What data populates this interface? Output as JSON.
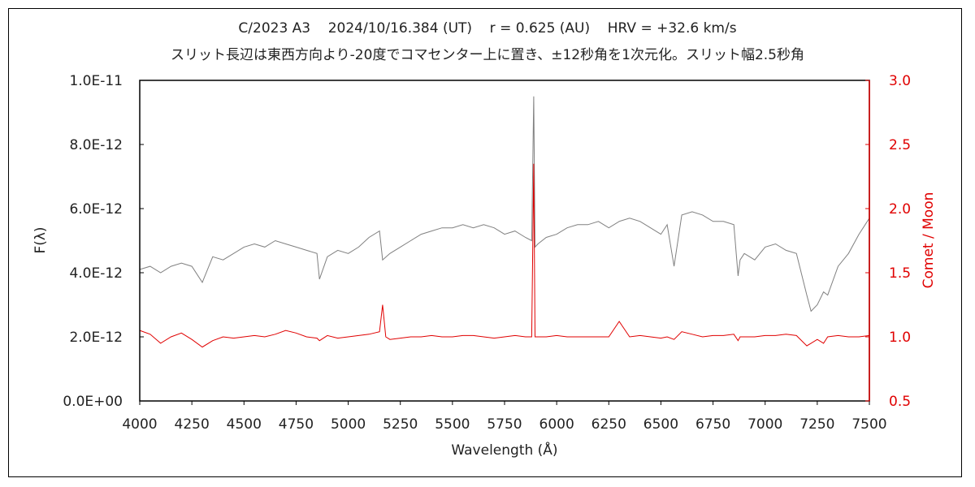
{
  "chart_data": {
    "type": "line",
    "title": "C/2023 A3    2024/10/16.384 (UT)    r = 0.625 (AU)    HRV = +32.6 km/s",
    "subtitle": "スリット長辺は東西方向より-20度でコマセンター上に置き、±12秒角を1次元化。スリット幅2.5秒角",
    "xlabel": "Wavelength (Å)",
    "ylabel": "F(λ)",
    "y2label": "Comet / Moon",
    "xlim": [
      4000,
      7500
    ],
    "ylim": [
      0,
      1e-11
    ],
    "y2lim": [
      0.5,
      3.0
    ],
    "x_ticks": [
      "4000",
      "4250",
      "4500",
      "4750",
      "5000",
      "5250",
      "5500",
      "5750",
      "6000",
      "6250",
      "6500",
      "6750",
      "7000",
      "7250",
      "7500"
    ],
    "y_ticks": [
      "0.0E+00",
      "2.0E-12",
      "4.0E-12",
      "6.0E-12",
      "8.0E-12",
      "1.0E-11"
    ],
    "y2_ticks": [
      "0.5",
      "1.0",
      "1.5",
      "2.0",
      "2.5",
      "3.0"
    ],
    "grid": false,
    "series": [
      {
        "axis": "left",
        "color": "#808080",
        "x": [
          4000,
          4050,
          4100,
          4150,
          4200,
          4250,
          4300,
          4350,
          4400,
          4450,
          4500,
          4550,
          4600,
          4650,
          4700,
          4750,
          4800,
          4850,
          4862,
          4900,
          4950,
          5000,
          5050,
          5100,
          5150,
          5165,
          5200,
          5250,
          5300,
          5350,
          5400,
          5450,
          5500,
          5550,
          5600,
          5650,
          5700,
          5750,
          5800,
          5850,
          5880,
          5890,
          5896,
          5910,
          5950,
          6000,
          6050,
          6100,
          6150,
          6200,
          6250,
          6300,
          6350,
          6400,
          6450,
          6500,
          6530,
          6563,
          6600,
          6650,
          6700,
          6750,
          6800,
          6850,
          6870,
          6880,
          6900,
          6950,
          7000,
          7050,
          7100,
          7150,
          7200,
          7220,
          7250,
          7280,
          7300,
          7350,
          7400,
          7450,
          7500
        ],
        "y": [
          4.1e-12,
          4.2e-12,
          4e-12,
          4.2e-12,
          4.3e-12,
          4.2e-12,
          3.7e-12,
          4.5e-12,
          4.4e-12,
          4.6e-12,
          4.8e-12,
          4.9e-12,
          4.8e-12,
          5e-12,
          4.9e-12,
          4.8e-12,
          4.7e-12,
          4.6e-12,
          3.8e-12,
          4.5e-12,
          4.7e-12,
          4.6e-12,
          4.8e-12,
          5.1e-12,
          5.3e-12,
          4.4e-12,
          4.6e-12,
          4.8e-12,
          5e-12,
          5.2e-12,
          5.3e-12,
          5.4e-12,
          5.4e-12,
          5.5e-12,
          5.4e-12,
          5.5e-12,
          5.4e-12,
          5.2e-12,
          5.3e-12,
          5.1e-12,
          5e-12,
          9.5e-12,
          4.8e-12,
          4.9e-12,
          5.1e-12,
          5.2e-12,
          5.4e-12,
          5.5e-12,
          5.5e-12,
          5.6e-12,
          5.4e-12,
          5.6e-12,
          5.7e-12,
          5.6e-12,
          5.4e-12,
          5.2e-12,
          5.5e-12,
          4.2e-12,
          5.8e-12,
          5.9e-12,
          5.8e-12,
          5.6e-12,
          5.6e-12,
          5.5e-12,
          3.9e-12,
          4.4e-12,
          4.6e-12,
          4.4e-12,
          4.8e-12,
          4.9e-12,
          4.7e-12,
          4.6e-12,
          3.3e-12,
          2.8e-12,
          3e-12,
          3.4e-12,
          3.3e-12,
          4.2e-12,
          4.6e-12,
          5.2e-12,
          5.7e-12
        ]
      },
      {
        "axis": "right",
        "color": "#e00000",
        "x": [
          4000,
          4050,
          4100,
          4150,
          4200,
          4250,
          4300,
          4350,
          4400,
          4450,
          4500,
          4550,
          4600,
          4650,
          4700,
          4750,
          4800,
          4850,
          4862,
          4900,
          4950,
          5000,
          5050,
          5100,
          5150,
          5165,
          5180,
          5200,
          5250,
          5300,
          5350,
          5400,
          5450,
          5500,
          5550,
          5600,
          5650,
          5700,
          5750,
          5800,
          5850,
          5880,
          5890,
          5896,
          5910,
          5950,
          6000,
          6050,
          6100,
          6150,
          6200,
          6250,
          6300,
          6350,
          6400,
          6450,
          6500,
          6530,
          6563,
          6600,
          6650,
          6700,
          6750,
          6800,
          6850,
          6870,
          6880,
          6900,
          6950,
          7000,
          7050,
          7100,
          7150,
          7200,
          7220,
          7250,
          7280,
          7300,
          7350,
          7400,
          7450,
          7500
        ],
        "y": [
          1.05,
          1.02,
          0.95,
          1.0,
          1.03,
          0.98,
          0.92,
          0.97,
          1.0,
          0.99,
          1.0,
          1.01,
          1.0,
          1.02,
          1.05,
          1.03,
          1.0,
          0.99,
          0.97,
          1.01,
          0.99,
          1.0,
          1.01,
          1.02,
          1.04,
          1.25,
          1.0,
          0.98,
          0.99,
          1.0,
          1.0,
          1.01,
          1.0,
          1.0,
          1.01,
          1.01,
          1.0,
          0.99,
          1.0,
          1.01,
          1.0,
          1.0,
          2.35,
          1.0,
          1.0,
          1.0,
          1.01,
          1.0,
          1.0,
          1.0,
          1.0,
          1.0,
          1.12,
          1.0,
          1.01,
          1.0,
          0.99,
          1.0,
          0.98,
          1.04,
          1.02,
          1.0,
          1.01,
          1.01,
          1.02,
          0.97,
          1.0,
          1.0,
          1.0,
          1.01,
          1.01,
          1.02,
          1.01,
          0.93,
          0.95,
          0.98,
          0.95,
          1.0,
          1.01,
          1.0,
          1.0,
          1.01
        ]
      }
    ]
  }
}
